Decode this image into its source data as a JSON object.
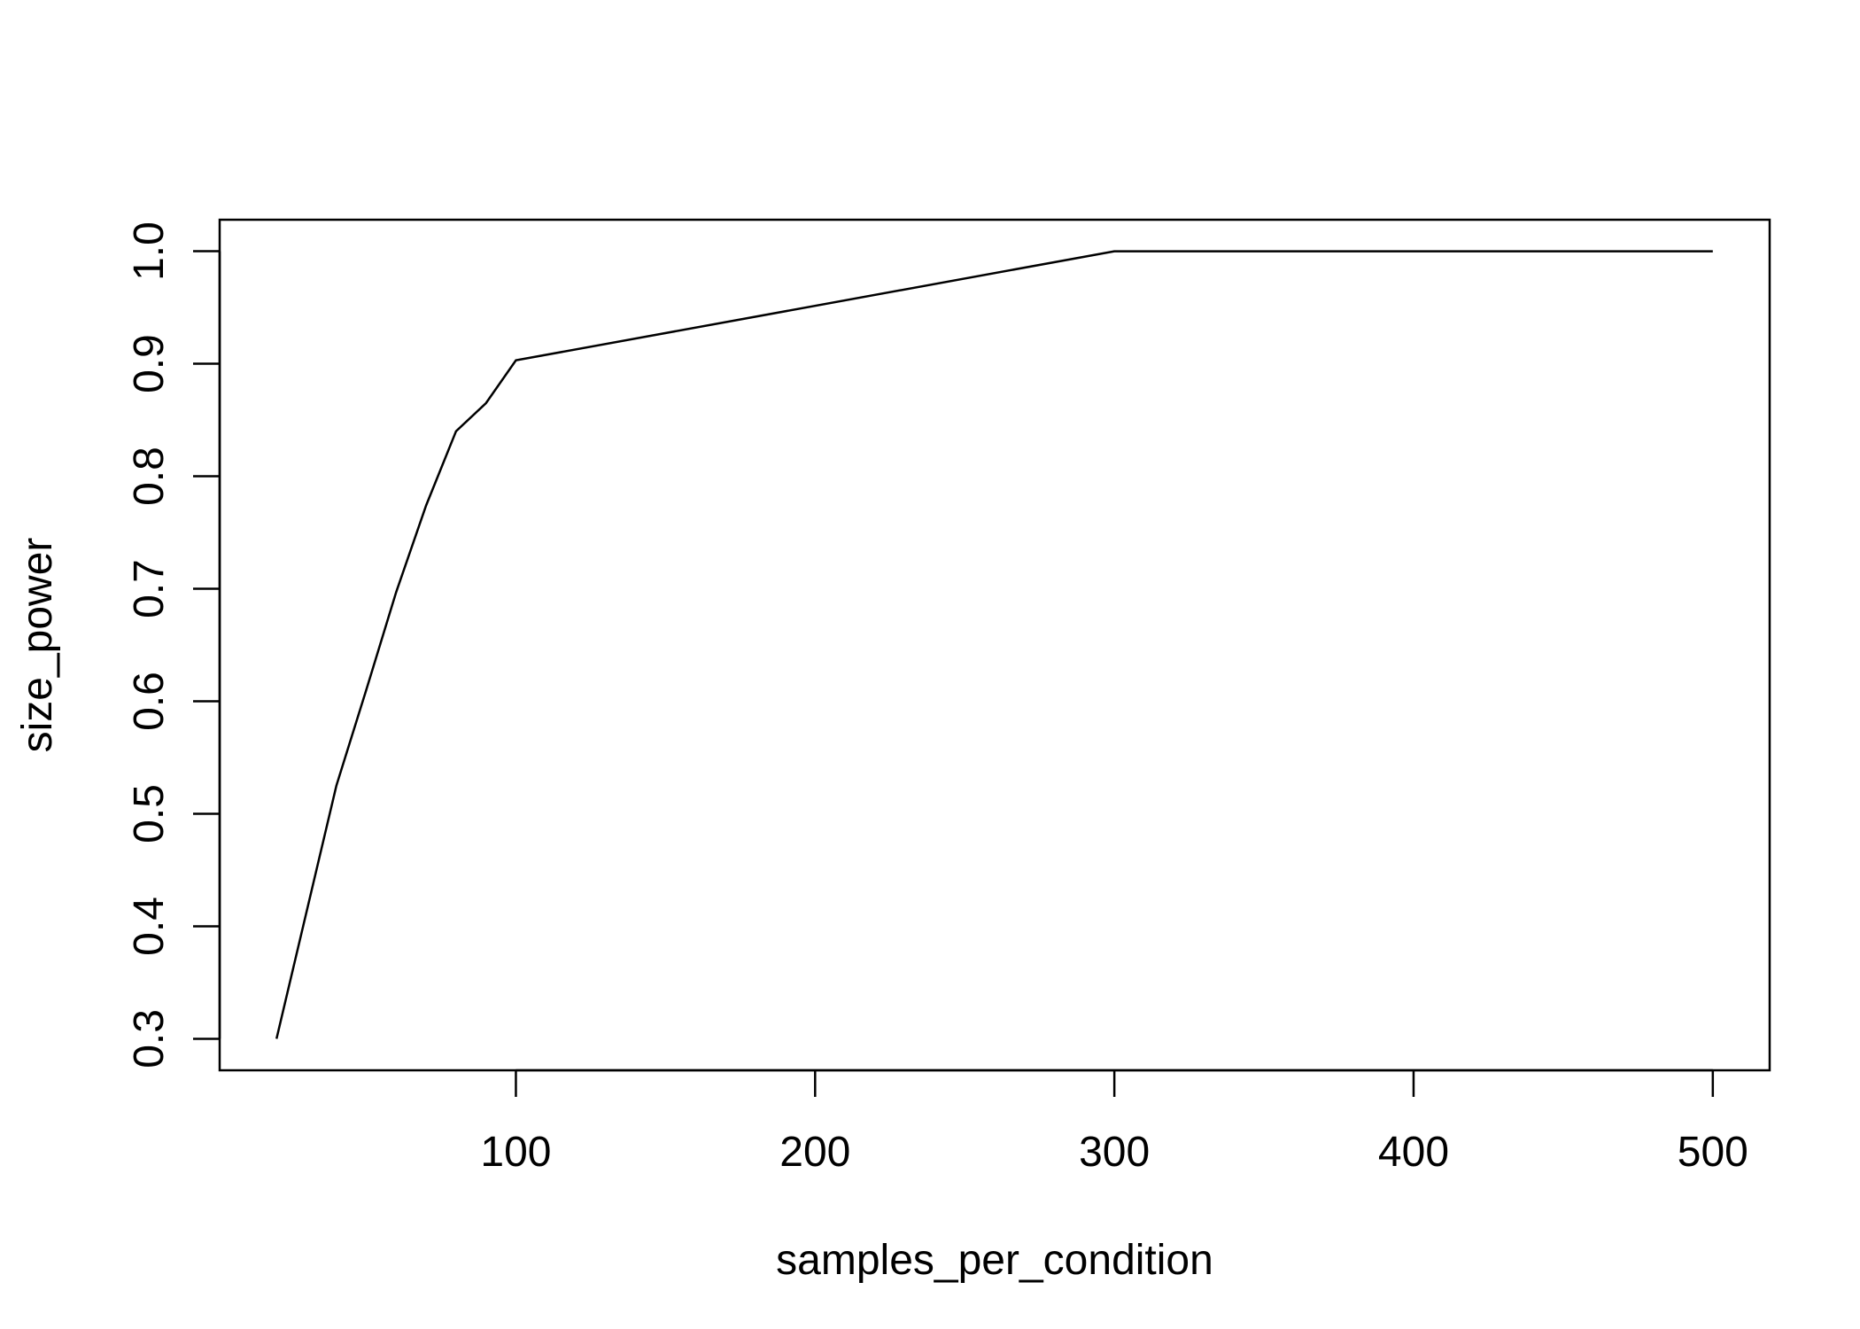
{
  "chart_data": {
    "type": "line",
    "title": "",
    "xlabel": "samples_per_condition",
    "ylabel": "size_power",
    "xlim": [
      1,
      519
    ],
    "ylim": [
      0.272,
      1.028
    ],
    "xticks": [
      100,
      200,
      300,
      400,
      500
    ],
    "yticks": [
      0.3,
      0.4,
      0.5,
      0.6,
      0.7,
      0.8,
      0.9,
      1.0
    ],
    "ytick_labels": [
      "0.3",
      "0.4",
      "0.5",
      "0.6",
      "0.7",
      "0.8",
      "0.9",
      "1.0"
    ],
    "grid": false,
    "legend": "none",
    "line_color": "#000000",
    "series": [
      {
        "x": [
          20,
          40,
          50,
          60,
          70,
          80,
          90,
          100,
          300,
          500
        ],
        "y": [
          0.3,
          0.525,
          0.61,
          0.697,
          0.774,
          0.84,
          0.865,
          0.903,
          1.0,
          1.0
        ]
      }
    ]
  }
}
